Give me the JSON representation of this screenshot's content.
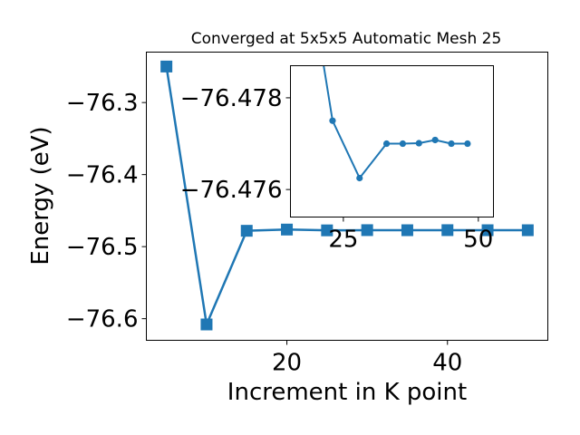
{
  "chart_data": [
    {
      "type": "line",
      "title": "Converged at 5x5x5 Automatic Mesh 25",
      "xlabel": "Increment in K point",
      "ylabel": "Energy (eV)",
      "x": [
        5,
        10,
        15,
        20,
        25,
        30,
        35,
        40,
        45,
        50
      ],
      "series": [
        {
          "values": [
            -76.25,
            -76.608,
            -76.478,
            -76.4763,
            -76.4774,
            -76.4771,
            -76.4772,
            -76.4771,
            -76.4772,
            -76.4772
          ]
        }
      ],
      "xlim": [
        2.5,
        52.5
      ],
      "ylim": [
        -76.63,
        -76.23
      ],
      "xticks": [
        20,
        40
      ],
      "yticks": [
        -76.6,
        -76.5,
        -76.4,
        -76.3
      ],
      "xtick_labels": [
        "20",
        "40"
      ],
      "ytick_labels": [
        "−76.6",
        "−76.5",
        "−76.4",
        "−76.3"
      ],
      "grid": false,
      "marker": "square",
      "color": "#1f77b4"
    },
    {
      "type": "line",
      "title": "",
      "xlabel": "",
      "ylabel": "",
      "x": [
        20,
        23,
        28,
        33,
        36,
        39,
        42,
        45,
        48
      ],
      "series": [
        {
          "values": [
            -76.47969,
            -76.4775,
            -76.47625,
            -76.477,
            -76.477,
            -76.47701,
            -76.47708,
            -76.477,
            -76.477
          ]
        }
      ],
      "xlim": [
        15.2,
        52.8
      ],
      "ylim": [
        -76.4754,
        -76.4787
      ],
      "xticks": [
        25,
        50
      ],
      "yticks": [
        -76.478,
        -76.476
      ],
      "xtick_labels": [
        "25",
        "50"
      ],
      "ytick_labels": [
        "−76.478",
        "−76.476"
      ],
      "grid": false,
      "marker": "circle",
      "color": "#1f77b4"
    }
  ]
}
